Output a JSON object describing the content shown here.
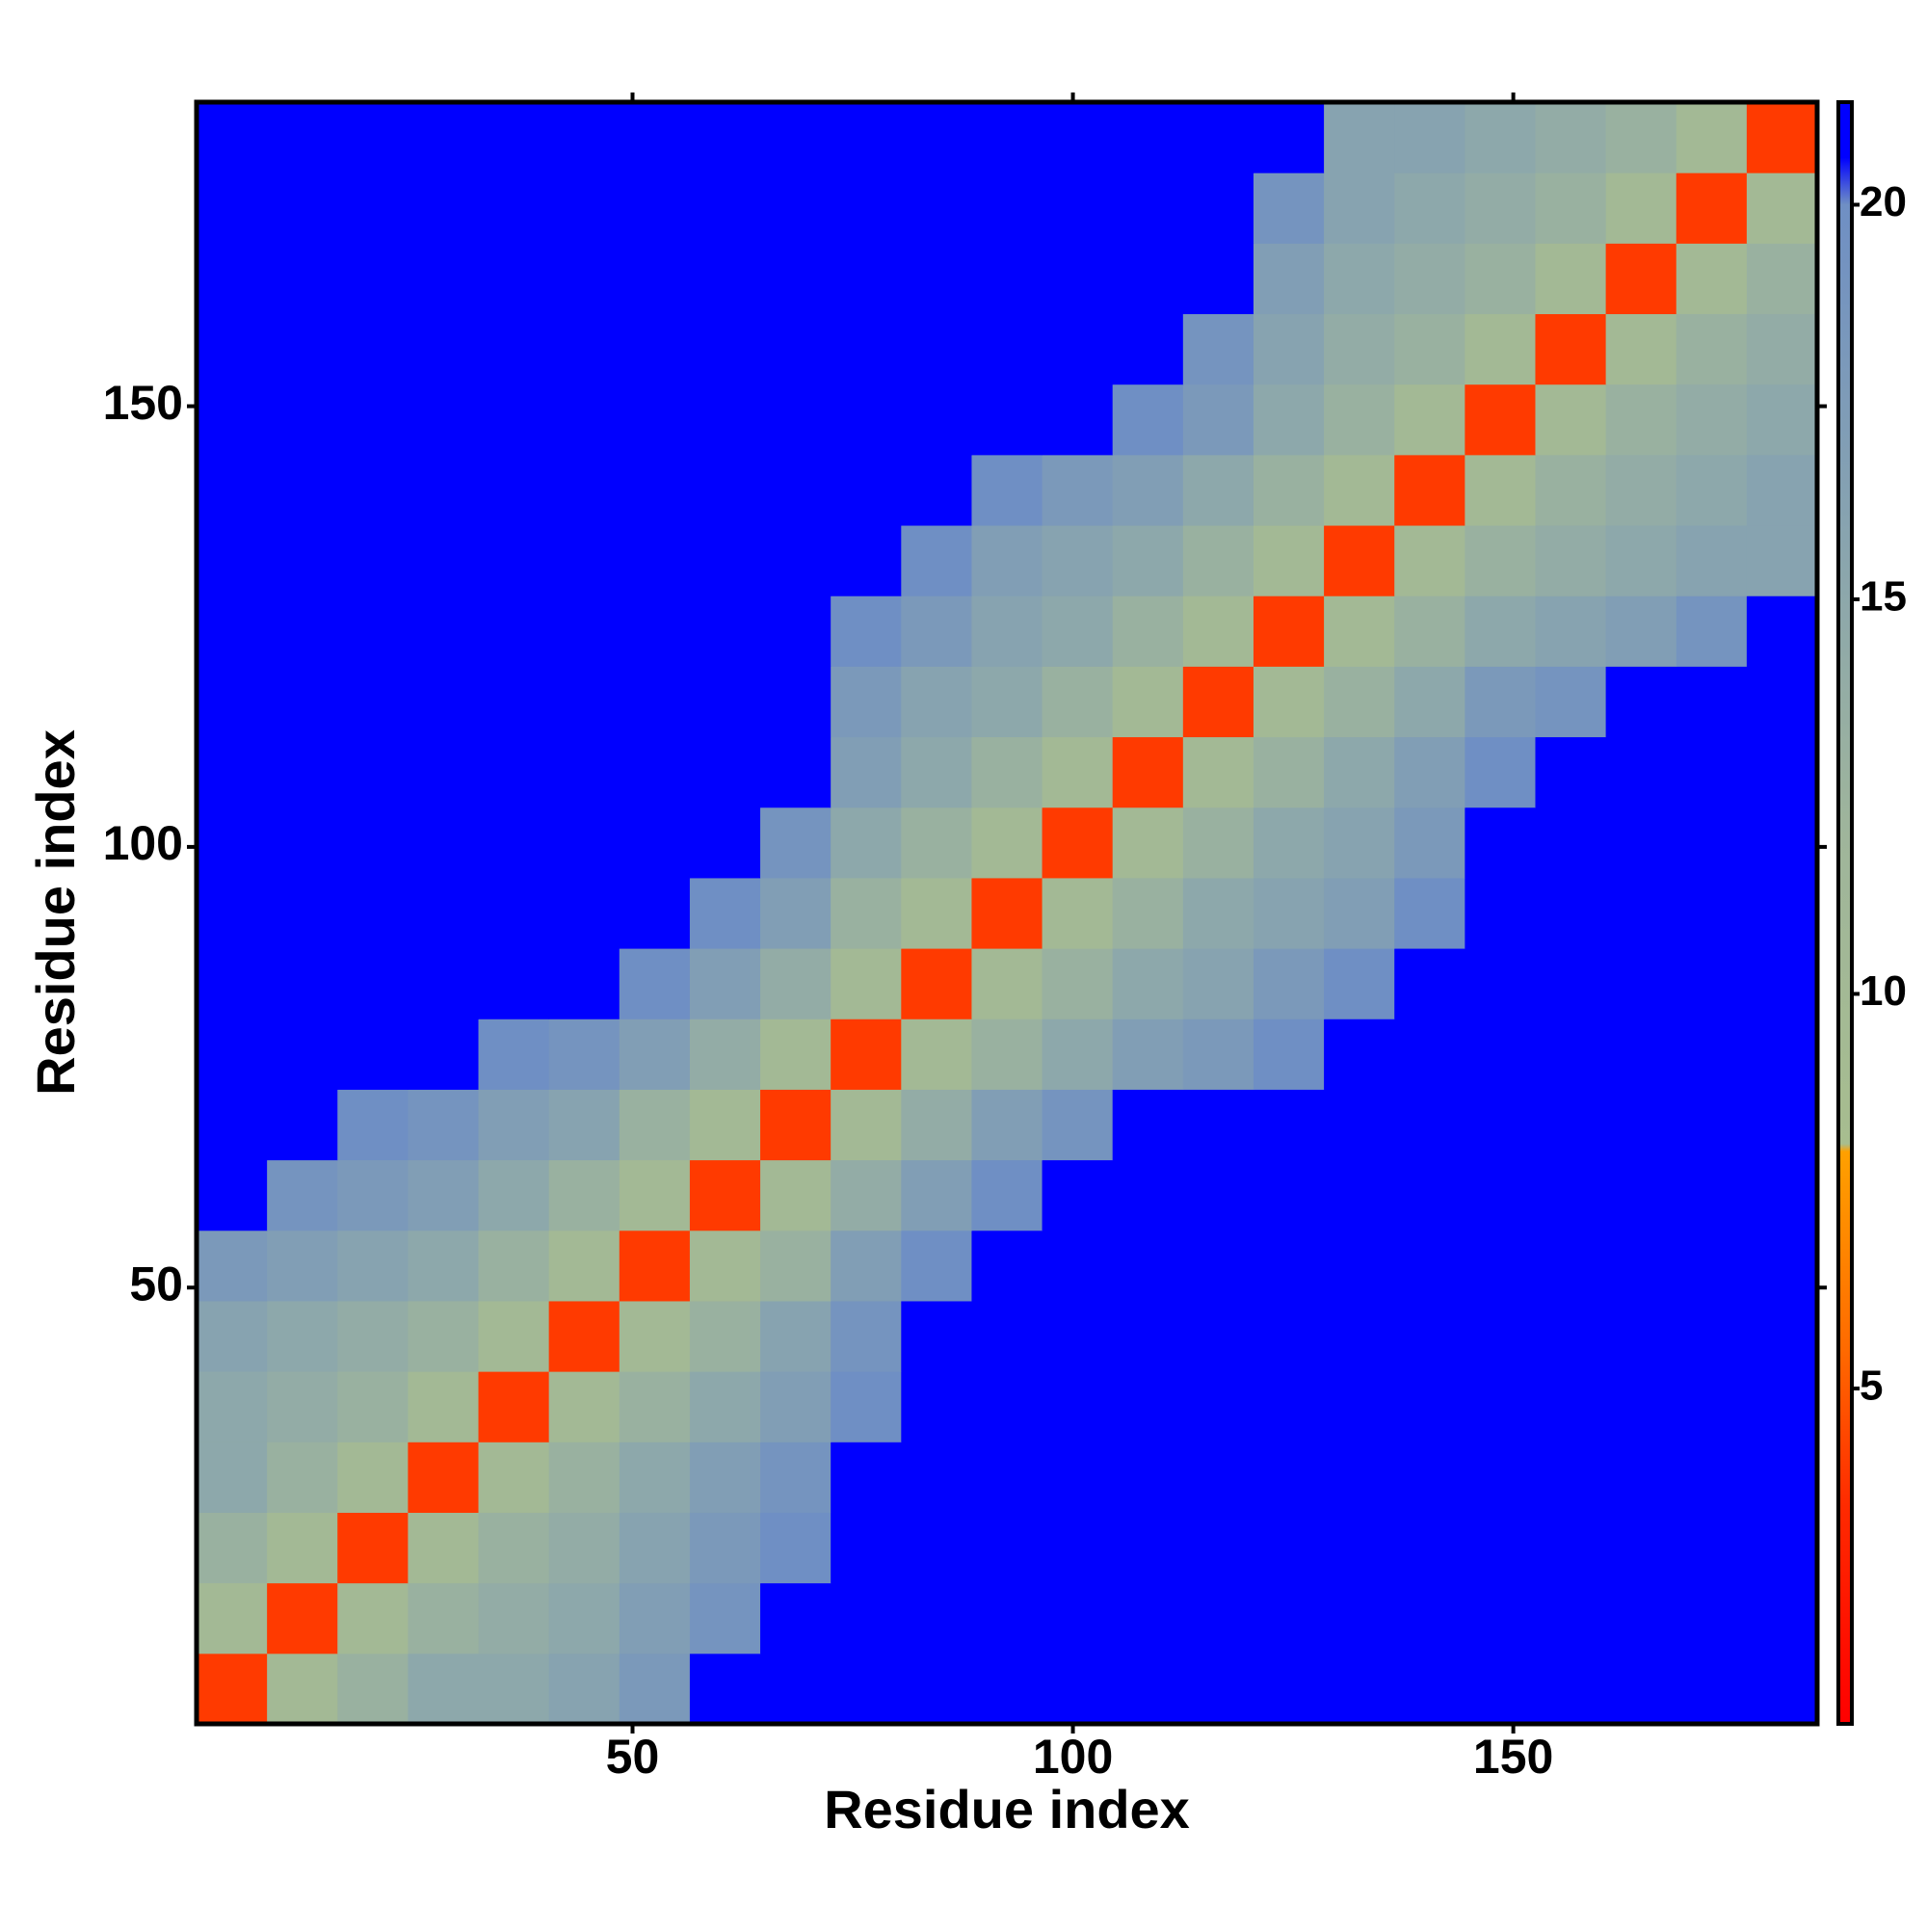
{
  "chart_data": {
    "type": "heatmap",
    "x_label": "Residue index",
    "y_label": "Residue index",
    "x": [
      4.5,
      12.5,
      20.5,
      28.5,
      36.5,
      44.5,
      52.5,
      60.5,
      68.5,
      76.5,
      84.5,
      92.5,
      100.5,
      108.5,
      116.5,
      124.5,
      132.5,
      140.5,
      148.5,
      156.5,
      164.5,
      172.5,
      180.5
    ],
    "y": [
      4.5,
      12.5,
      20.5,
      28.5,
      36.5,
      44.5,
      52.5,
      60.5,
      68.5,
      76.5,
      84.5,
      92.5,
      100.5,
      108.5,
      116.5,
      124.5,
      132.5,
      140.5,
      148.5,
      156.5,
      164.5,
      172.5,
      180.5
    ],
    "values": [
      [
        4,
        10,
        13,
        15,
        15,
        16,
        18,
        21,
        21,
        21,
        21,
        21,
        21,
        21,
        21,
        21,
        21,
        21,
        21,
        21,
        21,
        21,
        21
      ],
      [
        10,
        4,
        10,
        13,
        14,
        15,
        17,
        19,
        21,
        21,
        21,
        21,
        21,
        21,
        21,
        21,
        21,
        21,
        21,
        21,
        21,
        21,
        21
      ],
      [
        13,
        10,
        4,
        10,
        13,
        14,
        16,
        18,
        20,
        21,
        21,
        21,
        21,
        21,
        21,
        21,
        21,
        21,
        21,
        21,
        21,
        21,
        21
      ],
      [
        15,
        13,
        10,
        4,
        10,
        13,
        15,
        17,
        19,
        21,
        21,
        21,
        21,
        21,
        21,
        21,
        21,
        21,
        21,
        21,
        21,
        21,
        21
      ],
      [
        15,
        14,
        13,
        10,
        4,
        10,
        13,
        15,
        17,
        20,
        21,
        21,
        21,
        21,
        21,
        21,
        21,
        21,
        21,
        21,
        21,
        21,
        21
      ],
      [
        16,
        15,
        14,
        13,
        10,
        4,
        10,
        13,
        16,
        19,
        21,
        21,
        21,
        21,
        21,
        21,
        21,
        21,
        21,
        21,
        21,
        21,
        21
      ],
      [
        18,
        17,
        16,
        15,
        13,
        10,
        4,
        10,
        13,
        17,
        20,
        21,
        21,
        21,
        21,
        21,
        21,
        21,
        21,
        21,
        21,
        21,
        21
      ],
      [
        21,
        19,
        18,
        17,
        15,
        13,
        10,
        4,
        10,
        14,
        17,
        20,
        21,
        21,
        21,
        21,
        21,
        21,
        21,
        21,
        21,
        21,
        21
      ],
      [
        21,
        21,
        20,
        19,
        17,
        16,
        13,
        10,
        4,
        10,
        14,
        17,
        19,
        21,
        21,
        21,
        21,
        21,
        21,
        21,
        21,
        21,
        21
      ],
      [
        21,
        21,
        21,
        21,
        20,
        19,
        17,
        14,
        10,
        4,
        10,
        13,
        15,
        17,
        18,
        20,
        21,
        21,
        21,
        21,
        21,
        21,
        21
      ],
      [
        21,
        21,
        21,
        21,
        21,
        21,
        20,
        17,
        14,
        10,
        4,
        10,
        13,
        15,
        16,
        18,
        20,
        21,
        21,
        21,
        21,
        21,
        21
      ],
      [
        21,
        21,
        21,
        21,
        21,
        21,
        21,
        20,
        17,
        13,
        10,
        4,
        10,
        13,
        15,
        16,
        17,
        20,
        21,
        21,
        21,
        21,
        21
      ],
      [
        21,
        21,
        21,
        21,
        21,
        21,
        21,
        21,
        19,
        15,
        13,
        10,
        4,
        10,
        13,
        15,
        16,
        18,
        21,
        21,
        21,
        21,
        21
      ],
      [
        21,
        21,
        21,
        21,
        21,
        21,
        21,
        21,
        21,
        17,
        15,
        13,
        10,
        4,
        10,
        13,
        15,
        17,
        20,
        21,
        21,
        21,
        21
      ],
      [
        21,
        21,
        21,
        21,
        21,
        21,
        21,
        21,
        21,
        18,
        16,
        15,
        13,
        10,
        4,
        10,
        13,
        15,
        18,
        19,
        21,
        21,
        21
      ],
      [
        21,
        21,
        21,
        21,
        21,
        21,
        21,
        21,
        21,
        20,
        18,
        16,
        15,
        13,
        10,
        4,
        10,
        13,
        15,
        16,
        17,
        19,
        21
      ],
      [
        21,
        21,
        21,
        21,
        21,
        21,
        21,
        21,
        21,
        21,
        20,
        17,
        16,
        15,
        13,
        10,
        4,
        10,
        13,
        14,
        15,
        16,
        16
      ],
      [
        21,
        21,
        21,
        21,
        21,
        21,
        21,
        21,
        21,
        21,
        21,
        20,
        18,
        17,
        15,
        13,
        10,
        4,
        10,
        13,
        14,
        15,
        16
      ],
      [
        21,
        21,
        21,
        21,
        21,
        21,
        21,
        21,
        21,
        21,
        21,
        21,
        21,
        20,
        18,
        15,
        13,
        10,
        4,
        10,
        13,
        14,
        15
      ],
      [
        21,
        21,
        21,
        21,
        21,
        21,
        21,
        21,
        21,
        21,
        21,
        21,
        21,
        21,
        19,
        16,
        14,
        13,
        10,
        4,
        10,
        13,
        14
      ],
      [
        21,
        21,
        21,
        21,
        21,
        21,
        21,
        21,
        21,
        21,
        21,
        21,
        21,
        21,
        21,
        17,
        15,
        14,
        13,
        10,
        4,
        10,
        13
      ],
      [
        21,
        21,
        21,
        21,
        21,
        21,
        21,
        21,
        21,
        21,
        21,
        21,
        21,
        21,
        21,
        19,
        16,
        15,
        14,
        13,
        10,
        4,
        10
      ],
      [
        21,
        21,
        21,
        21,
        21,
        21,
        21,
        21,
        21,
        21,
        21,
        21,
        21,
        21,
        21,
        21,
        16,
        16,
        15,
        14,
        13,
        10,
        4
      ]
    ],
    "xlim": [
      0.5,
      184.5
    ],
    "ylim": [
      0.5,
      184.5
    ],
    "xticks": [
      50,
      100,
      150
    ],
    "yticks": [
      50,
      100,
      150
    ],
    "zlim": [
      0.75,
      21.3
    ],
    "zticks": [
      5,
      10,
      15,
      20
    ],
    "colorscale": [
      [
        0.75,
        "#ff0000"
      ],
      [
        3.5,
        "#ff2a00"
      ],
      [
        5.5,
        "#ff6a00"
      ],
      [
        8.0,
        "#ffa000"
      ],
      [
        8.1,
        "#a7bd8f"
      ],
      [
        12,
        "#9fb59b"
      ],
      [
        16,
        "#87a3b0"
      ],
      [
        20,
        "#6f8fc4"
      ],
      [
        20.6,
        "#0000ff"
      ],
      [
        21.3,
        "#0000ff"
      ]
    ]
  }
}
